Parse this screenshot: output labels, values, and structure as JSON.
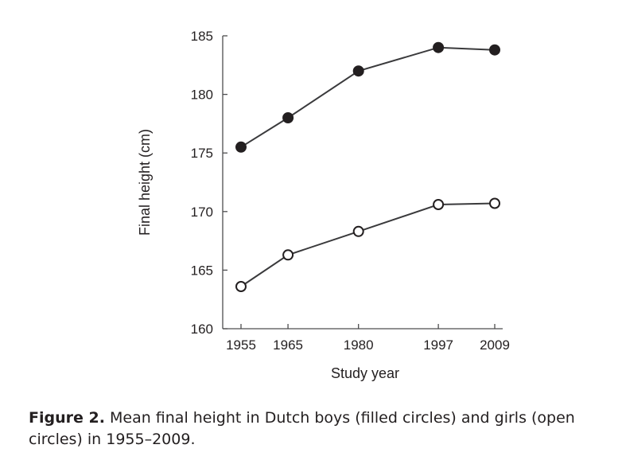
{
  "chart_data": {
    "type": "line",
    "xlabel": "Study year",
    "ylabel": "Final height (cm)",
    "x": [
      1955,
      1965,
      1980,
      1997,
      2009
    ],
    "xticks": [
      "1955",
      "1965",
      "1980",
      "1997",
      "2009"
    ],
    "ylim": [
      160,
      185
    ],
    "yticks": [
      "160",
      "165",
      "170",
      "175",
      "180",
      "185"
    ],
    "grid": false,
    "series": [
      {
        "name": "Dutch boys",
        "marker": "filled",
        "values": [
          175.5,
          178.0,
          182.0,
          184.0,
          183.8
        ]
      },
      {
        "name": "Dutch girls",
        "marker": "open",
        "values": [
          163.6,
          166.3,
          168.3,
          170.6,
          170.7
        ]
      }
    ]
  },
  "caption": {
    "label": "Figure 2.",
    "text": "Mean final height in Dutch boys (filled circles) and girls (open circles) in 1955–2009."
  },
  "colors": {
    "ink": "#231f20",
    "axis": "#4d4d4f",
    "line": "#3a3a3c",
    "open_fill": "#ffffff"
  }
}
